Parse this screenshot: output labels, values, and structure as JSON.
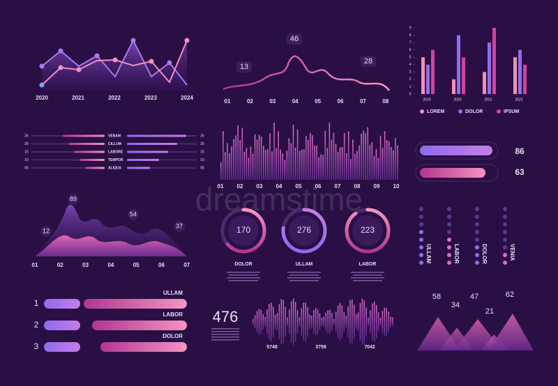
{
  "watermark": "dreamstime",
  "line_panel": {
    "x": [
      "2020",
      "2021",
      "2022",
      "2023",
      "2024"
    ]
  },
  "wave_panel": {
    "labels": [
      13,
      46,
      28
    ],
    "x": [
      "01",
      "02",
      "03",
      "04",
      "05",
      "06",
      "07",
      "08"
    ]
  },
  "bar_chart": {
    "type": "bar",
    "categories": [
      "2019",
      "2020",
      "2021",
      "2022"
    ],
    "ylim": [
      0,
      9
    ],
    "yticks": [
      0,
      1,
      2,
      3,
      4,
      5,
      6,
      7,
      8,
      9
    ],
    "series": [
      {
        "name": "LOREM",
        "color": "#f08fb8",
        "values": [
          5,
          2,
          3,
          5
        ]
      },
      {
        "name": "DOLOR",
        "color": "#8f6ee8",
        "values": [
          4,
          8,
          7,
          6
        ]
      },
      {
        "name": "IPSUM",
        "color": "#d0449a",
        "values": [
          6,
          5,
          9,
          4
        ]
      }
    ]
  },
  "list_panel": {
    "left": [
      "25",
      "20",
      "15",
      "10",
      "05"
    ],
    "names": [
      "VENAM",
      "CILLUM",
      "LABORE",
      "TEMPOR",
      "ALIQUA"
    ],
    "right": [
      "25",
      "20",
      "15",
      "10",
      "05"
    ]
  },
  "histogram_panel": {
    "x": [
      "01",
      "02",
      "03",
      "04",
      "05",
      "06",
      "07",
      "08",
      "09",
      "10"
    ]
  },
  "progress": [
    86,
    63
  ],
  "mountain_panel": {
    "labels": [
      12,
      89,
      54,
      37
    ],
    "x": [
      "01",
      "02",
      "03",
      "04",
      "05",
      "06",
      "07"
    ]
  },
  "donuts": [
    {
      "value": 170,
      "label": "DOLOR"
    },
    {
      "value": 276,
      "label": "ULLAM"
    },
    {
      "value": 223,
      "label": "LABOR"
    }
  ],
  "dots_panel": {
    "labels": [
      "ULLAM",
      "LABOR",
      "DOLOR",
      "VENIA"
    ]
  },
  "ranked": [
    {
      "rank": 1,
      "label": "ULLAM"
    },
    {
      "rank": 2,
      "label": "LABOR"
    },
    {
      "rank": 3,
      "label": "DOLOR"
    }
  ],
  "sound_panel": {
    "total": 476,
    "labels": [
      5748,
      3758,
      7042
    ]
  },
  "peaks_panel": {
    "labels": [
      58,
      34,
      47,
      21,
      62
    ]
  }
}
